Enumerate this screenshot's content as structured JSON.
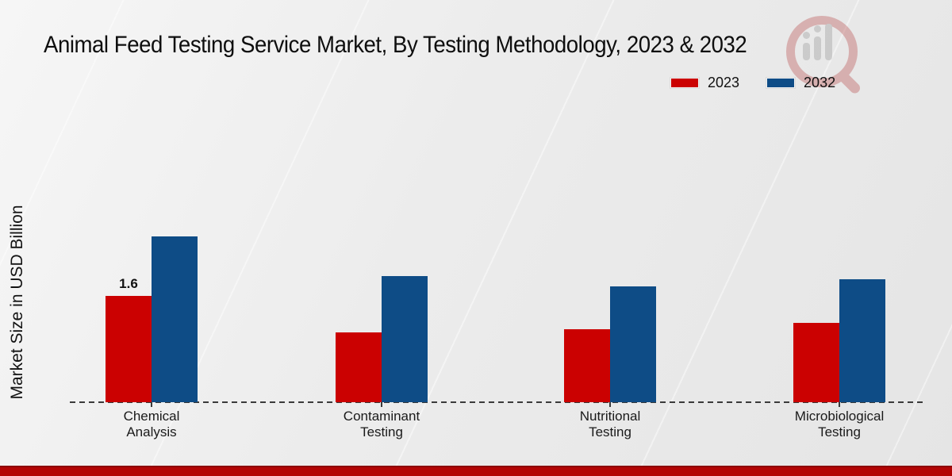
{
  "chart_data": {
    "type": "bar",
    "title": "Animal Feed Testing Service Market, By Testing Methodology, 2023 & 2032",
    "xlabel": "",
    "ylabel": "Market Size in USD Billion",
    "categories": [
      "Chemical\nAnalysis",
      "Contaminant\nTesting",
      "Nutritional\nTesting",
      "Microbiological\nTesting"
    ],
    "series": [
      {
        "name": "2023",
        "color": "#cb0101",
        "values": [
          1.6,
          1.05,
          1.1,
          1.2
        ]
      },
      {
        "name": "2032",
        "color": "#0e4c86",
        "values": [
          2.5,
          1.9,
          1.75,
          1.85
        ]
      }
    ],
    "data_labels": [
      {
        "series_index": 0,
        "category_index": 0,
        "text": "1.6"
      }
    ],
    "ylim": [
      0,
      3
    ],
    "legend_position": "top-right",
    "grid": false,
    "baseline_style": "dashed",
    "accent_strip_color": "#b30404"
  }
}
